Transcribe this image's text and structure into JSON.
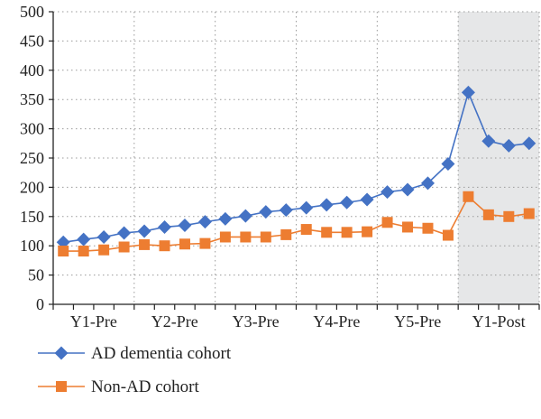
{
  "chart_data": {
    "type": "line",
    "title": "",
    "xlabel": "",
    "ylabel": "",
    "ylim": [
      0,
      500
    ],
    "yticks": [
      0,
      50,
      100,
      150,
      200,
      250,
      300,
      350,
      400,
      450,
      500
    ],
    "x_tick_labels": [
      "Y1-Pre",
      "Y2-Pre",
      "Y3-Pre",
      "Y4-Pre",
      "Y5-Pre",
      "Y1-Post"
    ],
    "x_tick_groups": [
      [
        1,
        4
      ],
      [
        5,
        8
      ],
      [
        9,
        12
      ],
      [
        13,
        16
      ],
      [
        17,
        20
      ],
      [
        21,
        24
      ]
    ],
    "num_points": 24,
    "shaded_region": {
      "from_point": 21,
      "to_point": 24,
      "color": "#e6e7e8"
    },
    "grid": "dotted",
    "legend_position": "bottom-left",
    "series": [
      {
        "name": "AD dementia cohort",
        "color": "#4472c4",
        "marker": "diamond",
        "values": [
          106,
          111,
          115,
          122,
          125,
          132,
          135,
          141,
          146,
          151,
          158,
          161,
          165,
          170,
          174,
          179,
          192,
          196,
          207,
          240,
          362,
          279,
          271,
          275
        ]
      },
      {
        "name": "Non-AD cohort",
        "color": "#ed7d31",
        "marker": "square",
        "values": [
          91,
          91,
          93,
          98,
          102,
          100,
          103,
          104,
          115,
          115,
          115,
          119,
          128,
          123,
          123,
          124,
          140,
          132,
          130,
          118,
          184,
          153,
          150,
          155
        ]
      }
    ]
  }
}
